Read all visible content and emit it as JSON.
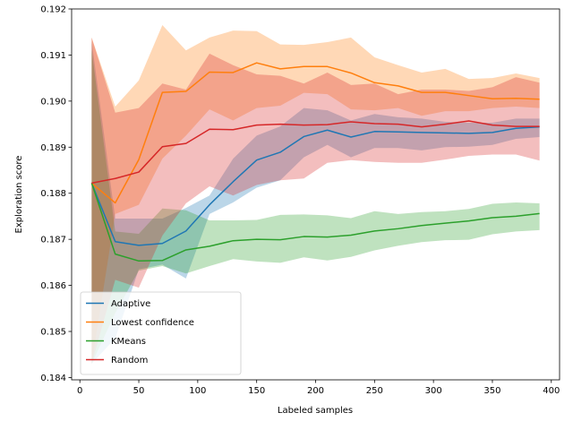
{
  "chart_data": {
    "type": "line",
    "title": "",
    "xlabel": "Labeled samples",
    "ylabel": "Exploration score",
    "xlim": [
      -7,
      407
    ],
    "ylim": [
      0.18395,
      0.192
    ],
    "xticks": [
      0,
      50,
      100,
      150,
      200,
      250,
      300,
      350,
      400
    ],
    "yticks": [
      0.184,
      0.185,
      0.186,
      0.187,
      0.188,
      0.189,
      0.19,
      0.191,
      0.192
    ],
    "grid": false,
    "legend_position": "lower-left",
    "x": [
      10,
      30,
      50,
      70,
      90,
      110,
      130,
      150,
      170,
      190,
      210,
      230,
      250,
      270,
      290,
      310,
      330,
      350,
      370,
      390
    ],
    "series": [
      {
        "name": "Adaptive",
        "color": "#1f77b4",
        "values": [
          0.18822,
          0.18695,
          0.18687,
          0.18691,
          0.18718,
          0.18775,
          0.18825,
          0.18872,
          0.18889,
          0.18923,
          0.18937,
          0.18922,
          0.18934,
          0.18933,
          0.18932,
          0.18931,
          0.1893,
          0.18932,
          0.18941,
          0.18944
        ],
        "lower": [
          0.1843,
          0.18485,
          0.18635,
          0.18645,
          0.18615,
          0.18755,
          0.1878,
          0.18812,
          0.18828,
          0.18878,
          0.18905,
          0.18878,
          0.18898,
          0.18898,
          0.18893,
          0.189,
          0.18901,
          0.18905,
          0.18918,
          0.18922
        ],
        "upper": [
          0.1913,
          0.18745,
          0.18745,
          0.18745,
          0.18768,
          0.18795,
          0.18875,
          0.18925,
          0.18945,
          0.18985,
          0.1898,
          0.18958,
          0.18972,
          0.18965,
          0.18962,
          0.18955,
          0.18953,
          0.18953,
          0.18962,
          0.18962
        ]
      },
      {
        "name": "Lowest confidence",
        "color": "#ff7f0e",
        "values": [
          0.18822,
          0.18779,
          0.18873,
          0.19019,
          0.19021,
          0.19063,
          0.19062,
          0.19083,
          0.1907,
          0.19075,
          0.19075,
          0.19061,
          0.1904,
          0.19033,
          0.19019,
          0.19019,
          0.19012,
          0.19005,
          0.19006,
          0.19004
        ],
        "lower": [
          0.1843,
          0.18755,
          0.18775,
          0.18875,
          0.18925,
          0.18982,
          0.18958,
          0.18985,
          0.1899,
          0.19018,
          0.19015,
          0.18982,
          0.1898,
          0.18985,
          0.18968,
          0.18978,
          0.18978,
          0.18985,
          0.18988,
          0.18985
        ],
        "upper": [
          0.19138,
          0.18988,
          0.19045,
          0.19165,
          0.1911,
          0.19138,
          0.19153,
          0.19152,
          0.19123,
          0.19122,
          0.19128,
          0.19138,
          0.19095,
          0.19078,
          0.19062,
          0.1907,
          0.19048,
          0.1905,
          0.1906,
          0.1905
        ]
      },
      {
        "name": "KMeans",
        "color": "#2ca02c",
        "values": [
          0.18822,
          0.18668,
          0.18653,
          0.18654,
          0.18677,
          0.18685,
          0.18697,
          0.187,
          0.18699,
          0.18706,
          0.18705,
          0.18709,
          0.18718,
          0.18723,
          0.1873,
          0.18735,
          0.1874,
          0.18747,
          0.1875,
          0.18756
        ],
        "lower": [
          0.1843,
          0.1854,
          0.18632,
          0.18642,
          0.18626,
          0.18642,
          0.18657,
          0.18652,
          0.18649,
          0.18661,
          0.18654,
          0.18662,
          0.18676,
          0.18686,
          0.18694,
          0.18698,
          0.18699,
          0.18711,
          0.18717,
          0.1872
        ],
        "upper": [
          0.1911,
          0.18717,
          0.18712,
          0.18767,
          0.18763,
          0.18741,
          0.18741,
          0.18742,
          0.18753,
          0.18754,
          0.18752,
          0.18746,
          0.18761,
          0.18755,
          0.18759,
          0.18761,
          0.18766,
          0.18777,
          0.1878,
          0.18778
        ]
      },
      {
        "name": "Random",
        "color": "#d62728",
        "values": [
          0.18822,
          0.18832,
          0.18846,
          0.18901,
          0.18908,
          0.18939,
          0.18938,
          0.18948,
          0.1895,
          0.18948,
          0.18949,
          0.18955,
          0.18951,
          0.1895,
          0.18944,
          0.1895,
          0.18957,
          0.18948,
          0.18945,
          0.18945
        ],
        "lower": [
          0.1843,
          0.18612,
          0.18595,
          0.18708,
          0.18778,
          0.18815,
          0.18795,
          0.18818,
          0.18828,
          0.18832,
          0.18866,
          0.18872,
          0.18868,
          0.18866,
          0.18866,
          0.18873,
          0.18881,
          0.18884,
          0.18884,
          0.18871
        ],
        "upper": [
          0.19138,
          0.18975,
          0.18985,
          0.19038,
          0.19025,
          0.19103,
          0.19078,
          0.19058,
          0.19055,
          0.19038,
          0.19062,
          0.19035,
          0.19038,
          0.19015,
          0.19025,
          0.19025,
          0.19022,
          0.1903,
          0.19052,
          0.1904
        ]
      }
    ]
  }
}
